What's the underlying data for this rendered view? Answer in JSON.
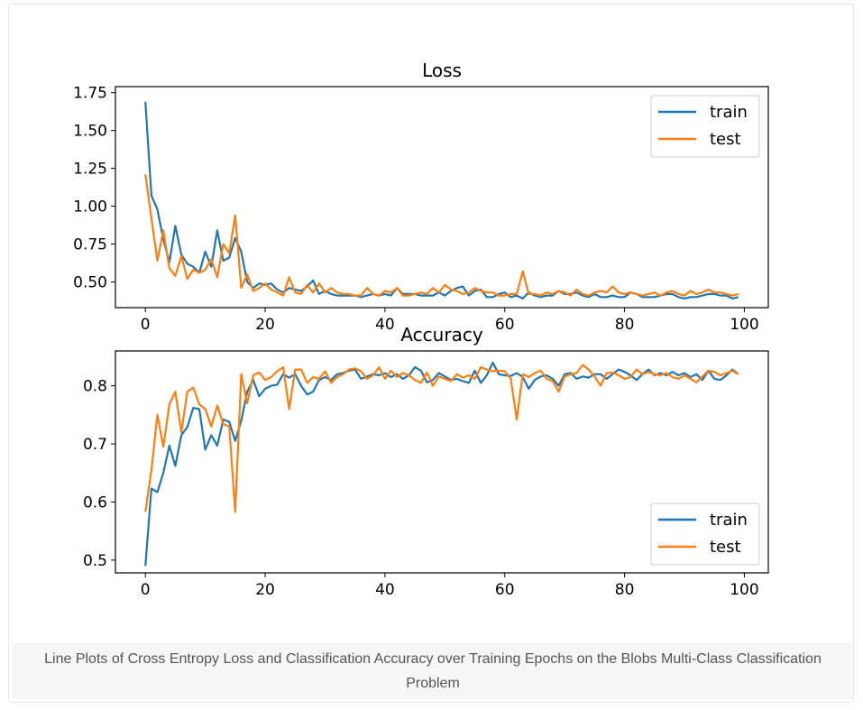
{
  "caption": "Line Plots of Cross Entropy Loss and Classification Accuracy over Training Epochs on the Blobs Multi-Class Classification Problem",
  "colors": {
    "train": "#1f77b4",
    "test": "#ff7f0e"
  },
  "chart_data": [
    {
      "type": "line",
      "title": "Loss",
      "xlabel": "",
      "ylabel": "",
      "xlim": [
        -5,
        104
      ],
      "ylim": [
        0.33,
        1.79
      ],
      "xticks": [
        0,
        20,
        40,
        60,
        80,
        100
      ],
      "yticks": [
        0.5,
        0.75,
        1.0,
        1.25,
        1.5,
        1.75
      ],
      "ytick_labels": [
        "0.50",
        "0.75",
        "1.00",
        "1.25",
        "1.50",
        "1.75"
      ],
      "legend": "top-right",
      "x": [
        0,
        1,
        2,
        3,
        4,
        5,
        6,
        7,
        8,
        9,
        10,
        11,
        12,
        13,
        14,
        15,
        16,
        17,
        18,
        19,
        20,
        21,
        22,
        23,
        24,
        25,
        26,
        27,
        28,
        29,
        30,
        31,
        32,
        33,
        34,
        35,
        36,
        37,
        38,
        39,
        40,
        41,
        42,
        43,
        44,
        45,
        46,
        47,
        48,
        49,
        50,
        51,
        52,
        53,
        54,
        55,
        56,
        57,
        58,
        59,
        60,
        61,
        62,
        63,
        64,
        65,
        66,
        67,
        68,
        69,
        70,
        71,
        72,
        73,
        74,
        75,
        76,
        77,
        78,
        79,
        80,
        81,
        82,
        83,
        84,
        85,
        86,
        87,
        88,
        89,
        90,
        91,
        92,
        93,
        94,
        95,
        96,
        97,
        98,
        99
      ],
      "series": [
        {
          "name": "train",
          "values": [
            1.69,
            1.07,
            0.98,
            0.78,
            0.63,
            0.87,
            0.68,
            0.62,
            0.6,
            0.56,
            0.7,
            0.6,
            0.84,
            0.64,
            0.66,
            0.79,
            0.7,
            0.5,
            0.46,
            0.49,
            0.48,
            0.49,
            0.45,
            0.43,
            0.46,
            0.45,
            0.44,
            0.47,
            0.51,
            0.42,
            0.44,
            0.42,
            0.41,
            0.41,
            0.41,
            0.41,
            0.4,
            0.41,
            0.42,
            0.41,
            0.42,
            0.41,
            0.46,
            0.42,
            0.42,
            0.42,
            0.41,
            0.41,
            0.41,
            0.43,
            0.41,
            0.44,
            0.46,
            0.47,
            0.41,
            0.44,
            0.45,
            0.4,
            0.4,
            0.42,
            0.43,
            0.4,
            0.41,
            0.39,
            0.43,
            0.41,
            0.4,
            0.41,
            0.41,
            0.44,
            0.42,
            0.42,
            0.43,
            0.41,
            0.4,
            0.42,
            0.4,
            0.4,
            0.41,
            0.4,
            0.4,
            0.43,
            0.42,
            0.4,
            0.4,
            0.4,
            0.41,
            0.42,
            0.42,
            0.4,
            0.39,
            0.4,
            0.4,
            0.41,
            0.42,
            0.42,
            0.41,
            0.41,
            0.39,
            0.4
          ]
        },
        {
          "name": "test",
          "values": [
            1.21,
            0.92,
            0.64,
            0.84,
            0.59,
            0.54,
            0.67,
            0.52,
            0.58,
            0.56,
            0.58,
            0.65,
            0.53,
            0.75,
            0.69,
            0.94,
            0.46,
            0.55,
            0.44,
            0.46,
            0.49,
            0.45,
            0.43,
            0.41,
            0.53,
            0.43,
            0.42,
            0.48,
            0.43,
            0.49,
            0.43,
            0.46,
            0.43,
            0.42,
            0.42,
            0.41,
            0.41,
            0.46,
            0.42,
            0.41,
            0.44,
            0.43,
            0.46,
            0.41,
            0.41,
            0.42,
            0.43,
            0.42,
            0.46,
            0.43,
            0.48,
            0.45,
            0.44,
            0.42,
            0.43,
            0.46,
            0.44,
            0.43,
            0.43,
            0.41,
            0.41,
            0.42,
            0.42,
            0.57,
            0.42,
            0.42,
            0.41,
            0.43,
            0.42,
            0.44,
            0.43,
            0.41,
            0.45,
            0.42,
            0.41,
            0.43,
            0.44,
            0.43,
            0.47,
            0.43,
            0.42,
            0.43,
            0.42,
            0.41,
            0.42,
            0.43,
            0.41,
            0.43,
            0.44,
            0.42,
            0.41,
            0.44,
            0.42,
            0.43,
            0.45,
            0.43,
            0.43,
            0.42,
            0.41,
            0.42
          ]
        }
      ]
    },
    {
      "type": "line",
      "title": "Accuracy",
      "xlabel": "",
      "ylabel": "",
      "xlim": [
        -5,
        104
      ],
      "ylim": [
        0.478,
        0.86
      ],
      "xticks": [
        0,
        20,
        40,
        60,
        80,
        100
      ],
      "yticks": [
        0.5,
        0.6,
        0.7,
        0.8
      ],
      "ytick_labels": [
        "0.5",
        "0.6",
        "0.7",
        "0.8"
      ],
      "legend": "bottom-right",
      "x": [
        0,
        1,
        2,
        3,
        4,
        5,
        6,
        7,
        8,
        9,
        10,
        11,
        12,
        13,
        14,
        15,
        16,
        17,
        18,
        19,
        20,
        21,
        22,
        23,
        24,
        25,
        26,
        27,
        28,
        29,
        30,
        31,
        32,
        33,
        34,
        35,
        36,
        37,
        38,
        39,
        40,
        41,
        42,
        43,
        44,
        45,
        46,
        47,
        48,
        49,
        50,
        51,
        52,
        53,
        54,
        55,
        56,
        57,
        58,
        59,
        60,
        61,
        62,
        63,
        64,
        65,
        66,
        67,
        68,
        69,
        70,
        71,
        72,
        73,
        74,
        75,
        76,
        77,
        78,
        79,
        80,
        81,
        82,
        83,
        84,
        85,
        86,
        87,
        88,
        89,
        90,
        91,
        92,
        93,
        94,
        95,
        96,
        97,
        98,
        99
      ],
      "series": [
        {
          "name": "train",
          "values": [
            0.49,
            0.623,
            0.617,
            0.65,
            0.697,
            0.662,
            0.715,
            0.729,
            0.762,
            0.76,
            0.69,
            0.715,
            0.697,
            0.742,
            0.738,
            0.705,
            0.74,
            0.79,
            0.81,
            0.782,
            0.795,
            0.8,
            0.802,
            0.82,
            0.814,
            0.82,
            0.8,
            0.785,
            0.79,
            0.81,
            0.815,
            0.81,
            0.82,
            0.822,
            0.826,
            0.828,
            0.812,
            0.816,
            0.82,
            0.818,
            0.822,
            0.815,
            0.82,
            0.812,
            0.818,
            0.832,
            0.826,
            0.806,
            0.81,
            0.822,
            0.816,
            0.81,
            0.812,
            0.808,
            0.805,
            0.826,
            0.805,
            0.818,
            0.84,
            0.82,
            0.818,
            0.817,
            0.822,
            0.815,
            0.795,
            0.81,
            0.816,
            0.818,
            0.812,
            0.8,
            0.82,
            0.822,
            0.812,
            0.816,
            0.814,
            0.82,
            0.82,
            0.812,
            0.82,
            0.828,
            0.824,
            0.818,
            0.81,
            0.82,
            0.828,
            0.818,
            0.822,
            0.818,
            0.824,
            0.818,
            0.822,
            0.815,
            0.82,
            0.81,
            0.826,
            0.812,
            0.81,
            0.818,
            0.828,
            0.82
          ]
        },
        {
          "name": "test",
          "values": [
            0.583,
            0.655,
            0.75,
            0.695,
            0.768,
            0.79,
            0.72,
            0.79,
            0.797,
            0.768,
            0.76,
            0.73,
            0.766,
            0.734,
            0.73,
            0.583,
            0.82,
            0.77,
            0.818,
            0.823,
            0.81,
            0.815,
            0.825,
            0.832,
            0.76,
            0.828,
            0.828,
            0.805,
            0.815,
            0.812,
            0.825,
            0.805,
            0.815,
            0.82,
            0.828,
            0.83,
            0.825,
            0.812,
            0.818,
            0.832,
            0.812,
            0.826,
            0.815,
            0.822,
            0.818,
            0.81,
            0.805,
            0.823,
            0.8,
            0.816,
            0.812,
            0.808,
            0.82,
            0.814,
            0.818,
            0.812,
            0.832,
            0.828,
            0.825,
            0.826,
            0.825,
            0.812,
            0.742,
            0.82,
            0.815,
            0.822,
            0.826,
            0.812,
            0.808,
            0.79,
            0.816,
            0.82,
            0.822,
            0.836,
            0.828,
            0.816,
            0.8,
            0.822,
            0.823,
            0.818,
            0.812,
            0.815,
            0.828,
            0.82,
            0.824,
            0.82,
            0.818,
            0.822,
            0.815,
            0.812,
            0.818,
            0.812,
            0.806,
            0.816,
            0.826,
            0.824,
            0.818,
            0.822,
            0.826,
            0.82
          ]
        }
      ]
    }
  ]
}
